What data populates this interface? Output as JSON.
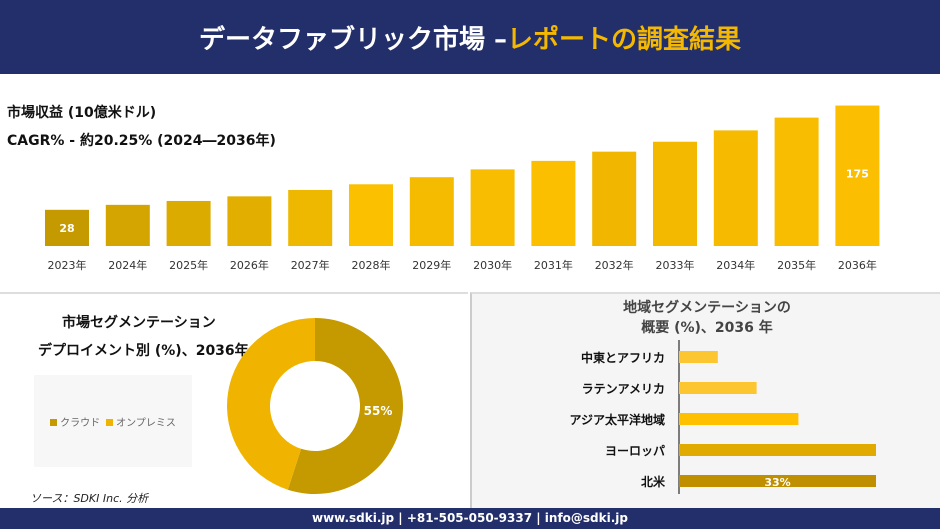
{
  "header": {
    "title_main": "データファブリック市場 –",
    "title_accent": "レポートの調査結果"
  },
  "footer": {
    "text": "www.sdki.jp | +81-505-050-9337 | info@sdki.jp"
  },
  "source": "ソース：SDKI Inc. 分析",
  "colors": {
    "navy": "#232f6b",
    "gold": "#f5b800",
    "dark_gold": "#c49a00"
  },
  "chart_data": [
    {
      "type": "bar",
      "title": "市場収益 (10億米ドル)",
      "subtitle": "CAGR% - 約20.25% (2024―2036年)",
      "categories": [
        "2023年",
        "2024年",
        "2025年",
        "2026年",
        "2027年",
        "2028年",
        "2029年",
        "2030年",
        "2031年",
        "2032年",
        "2033年",
        "2034年",
        "2035年",
        "2036年"
      ],
      "values": [
        28,
        35,
        40.5,
        47,
        56,
        64,
        74,
        85,
        97,
        110,
        124,
        140,
        158,
        175
      ],
      "data_labels": {
        "0": "28",
        "13": "175"
      },
      "ylim": [
        -23,
        180
      ],
      "grid": false
    },
    {
      "type": "pie",
      "title_line1": "市場セグメンテーション",
      "title_line2": "デプロイメント別 (%)、2036年",
      "labels": [
        "クラウド",
        "オンプレミス"
      ],
      "values": [
        55,
        45
      ],
      "colors": [
        "#c49a00",
        "#f0b400"
      ],
      "data_label": "55%",
      "legend": "left"
    },
    {
      "type": "bar",
      "orientation": "horizontal",
      "title_line1": "地域セグメンテーションの",
      "title_line2": "概要 (%)、2036 年",
      "categories": [
        "中東とアフリカ",
        "ラテンアメリカ",
        "アジア太平洋地域",
        "ヨーロッパ",
        "北米"
      ],
      "values": [
        6.5,
        13,
        20,
        33,
        33
      ],
      "data_label": "33%",
      "colors": [
        "#fcc630",
        "#fcc630",
        "#ffc000",
        "#e0aa00",
        "#bf8f00"
      ]
    }
  ]
}
